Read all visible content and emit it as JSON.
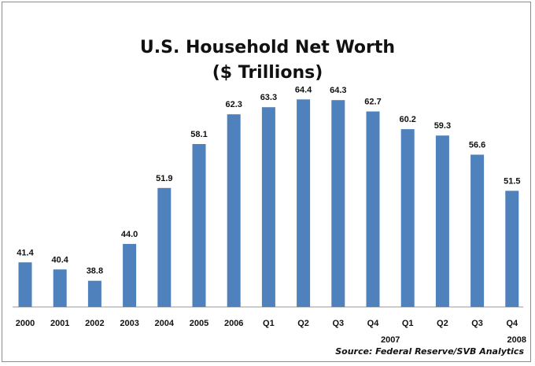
{
  "chart_data": {
    "type": "bar",
    "title": "U.S. Household Net Worth",
    "subtitle": "($ Trillions)",
    "categories": [
      "2000",
      "2001",
      "2002",
      "2003",
      "2004",
      "2005",
      "2006",
      "Q1",
      "Q2",
      "Q3",
      "Q4",
      "Q1",
      "Q2",
      "Q3",
      "Q4"
    ],
    "group_labels": [
      {
        "label": "2007",
        "under_index": 11
      },
      {
        "label": "2008",
        "under_index": 14
      }
    ],
    "values": [
      41.4,
      40.4,
      38.8,
      44.0,
      51.9,
      58.1,
      62.3,
      63.3,
      64.4,
      64.3,
      62.7,
      60.2,
      59.3,
      56.6,
      51.5
    ],
    "value_labels": [
      "41.4",
      "40.4",
      "38.8",
      "44.0",
      "51.9",
      "58.1",
      "62.3",
      "63.3",
      "64.4",
      "64.3",
      "62.7",
      "60.2",
      "59.3",
      "56.6",
      "51.5"
    ],
    "ylim": [
      35.1,
      70
    ],
    "xlabel": "",
    "ylabel": "",
    "grid": false,
    "legend": "none",
    "bar_color": "#4f81bd",
    "source": "Source: Federal Reserve/SVB Analytics"
  }
}
